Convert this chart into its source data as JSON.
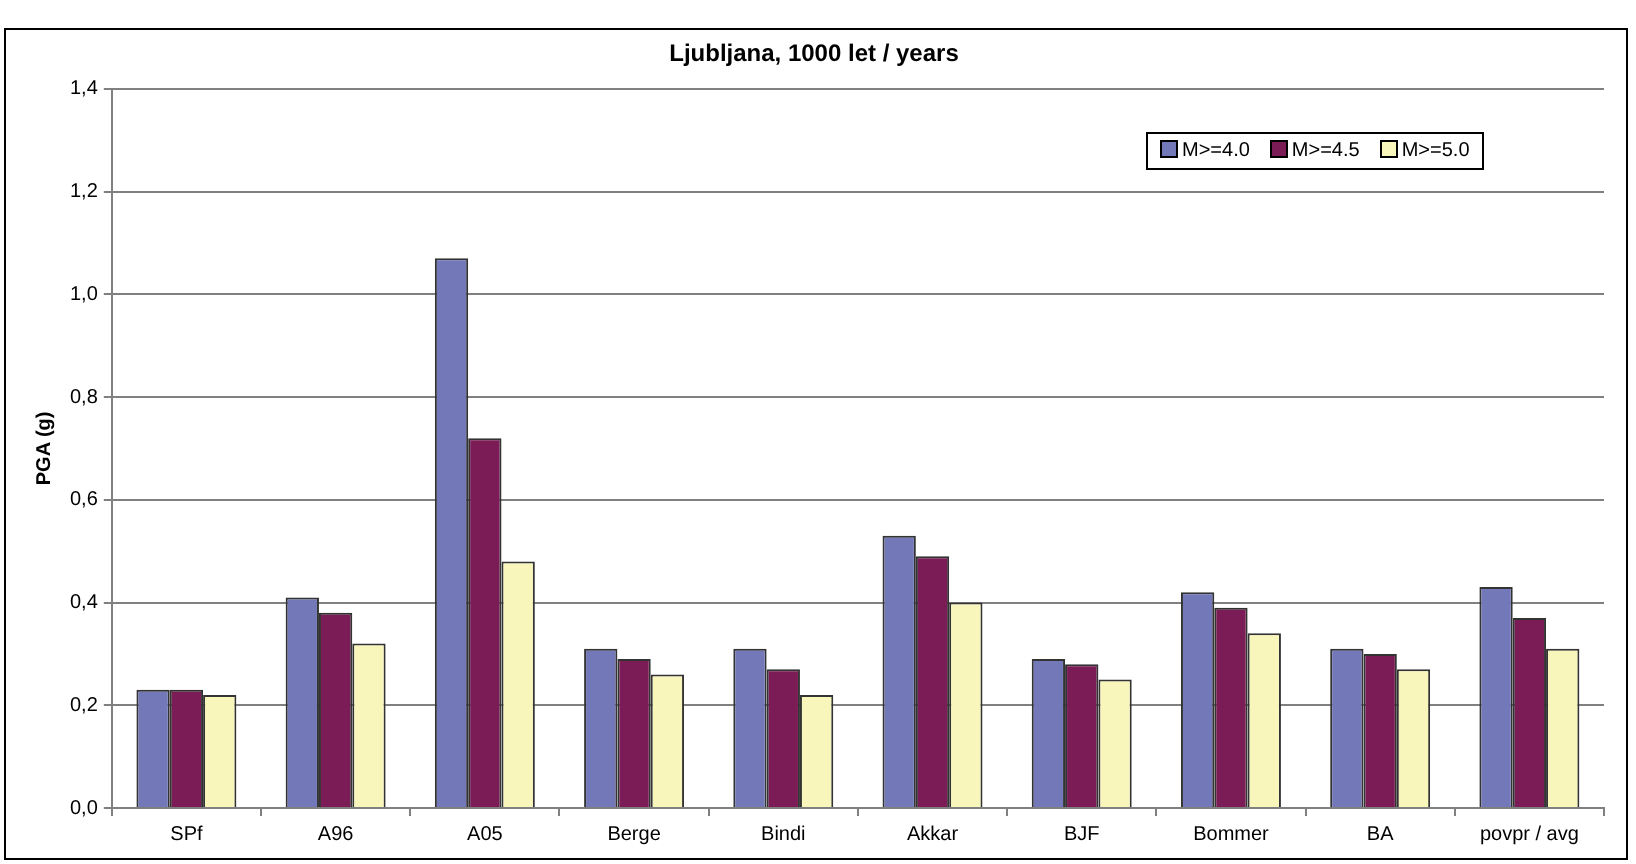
{
  "chart_data": {
    "type": "bar",
    "title": "Ljubljana, 1000 let / years",
    "ylabel": "PGA (g)",
    "categories": [
      "SPf",
      "A96",
      "A05",
      "Berge",
      "Bindi",
      "Akkar",
      "BJF",
      "Bommer",
      "BA",
      "povpr / avg"
    ],
    "series": [
      {
        "name": "M>=4.0",
        "color": "#7378b8",
        "values": [
          0.23,
          0.41,
          1.07,
          0.31,
          0.31,
          0.53,
          0.29,
          0.42,
          0.31,
          0.43
        ]
      },
      {
        "name": "M>=4.5",
        "color": "#7b1c56",
        "values": [
          0.23,
          0.38,
          0.72,
          0.29,
          0.27,
          0.49,
          0.28,
          0.39,
          0.3,
          0.37
        ]
      },
      {
        "name": "M>=5.0",
        "color": "#f8f6bb",
        "values": [
          0.22,
          0.32,
          0.48,
          0.26,
          0.22,
          0.4,
          0.25,
          0.34,
          0.27,
          0.31
        ]
      }
    ],
    "ylim": [
      0,
      1.4
    ],
    "yticks": [
      {
        "value": 0,
        "label": "0,0"
      },
      {
        "value": 0.2,
        "label": "0,2"
      },
      {
        "value": 0.4,
        "label": "0,4"
      },
      {
        "value": 0.6,
        "label": "0,6"
      },
      {
        "value": 0.8,
        "label": "0,8"
      },
      {
        "value": 1.0,
        "label": "1,0"
      },
      {
        "value": 1.2,
        "label": "1,2"
      },
      {
        "value": 1.4,
        "label": "1,4"
      }
    ],
    "grid": "y",
    "legend": "top right"
  }
}
